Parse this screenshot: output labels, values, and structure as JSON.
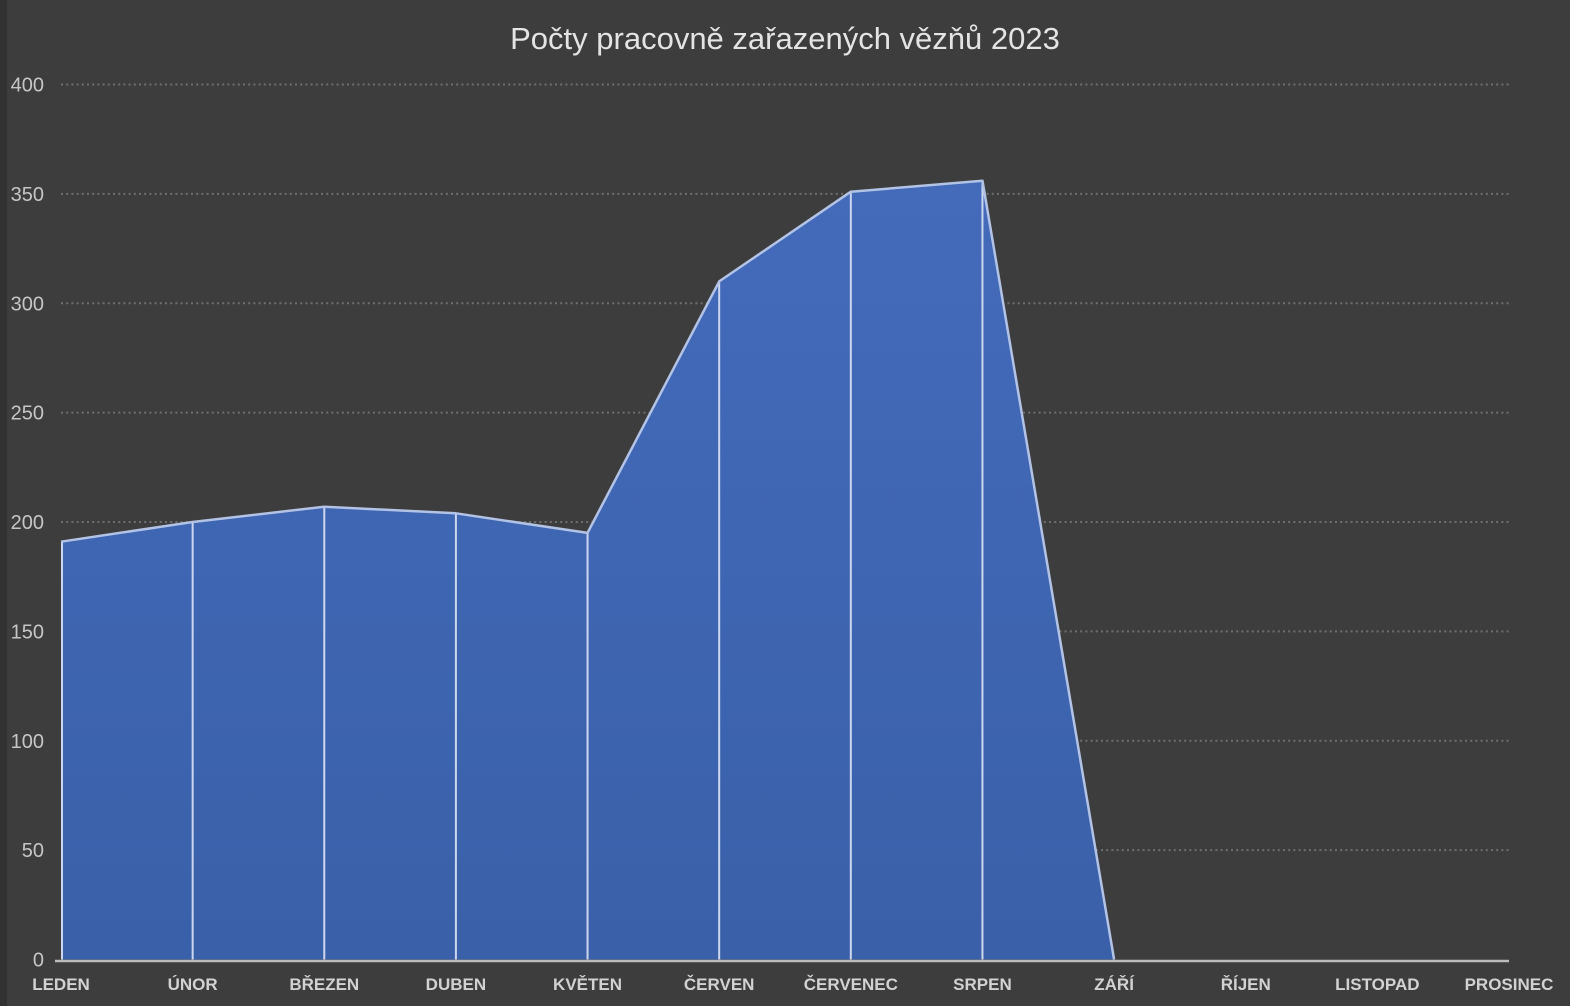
{
  "chart_data": {
    "type": "area",
    "title": "Počty pracovně zařazených vězňů 2023",
    "categories": [
      "LEDEN",
      "ÚNOR",
      "BŘEZEN",
      "DUBEN",
      "KVĚTEN",
      "ČERVEN",
      "ČERVENEC",
      "SRPEN",
      "ZÁŘÍ",
      "ŘÍJEN",
      "LISTOPAD",
      "PROSINEC"
    ],
    "values": [
      191,
      200,
      207,
      204,
      195,
      310,
      351,
      356,
      0,
      0,
      0,
      0
    ],
    "series_name": "Počty pracovně zařazených vězňů",
    "xlabel": "",
    "ylabel": "",
    "ylim": [
      0,
      400
    ],
    "yticks": [
      0,
      50,
      100,
      150,
      200,
      250,
      300,
      350,
      400
    ],
    "grid": "horizontal-dotted",
    "legend_position": "none",
    "colors": {
      "background": "#3d3d3d",
      "left_edge_strip": "#323232",
      "area_fill_top": "#436bba",
      "area_fill_bottom": "#3a60a9",
      "area_border": "#b3c3e6",
      "drop_line": "#ccd7ef",
      "gridline": "#6f6f6f",
      "axis_line": "#bcbcbc",
      "title_text": "#e4e4e4",
      "ytick_text": "#c6c6c6",
      "xtick_text": "#d2d2d2"
    }
  }
}
